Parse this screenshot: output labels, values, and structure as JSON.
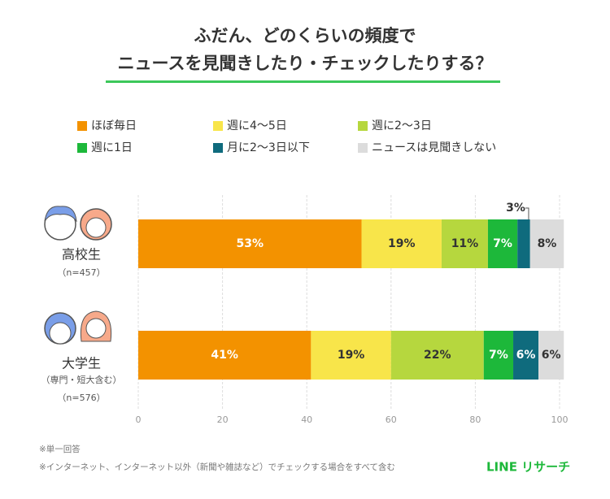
{
  "title_lines": [
    "ふだん、どのくらいの頻度で",
    "ニュースを見聞きしたり・チェックしたりする？"
  ],
  "chart_data": {
    "type": "stacked-bar-horizontal",
    "categories": [
      "高校生",
      "大学生"
    ],
    "category_notes": [
      [
        "（n=457）"
      ],
      [
        "（専門・短大含む）",
        "（n=576）"
      ]
    ],
    "series": [
      {
        "name": "ほぼ毎日",
        "color": "#f39200",
        "values": [
          53,
          41
        ],
        "value_labels": [
          "53%",
          "41%"
        ]
      },
      {
        "name": "週に4～5日",
        "color": "#f8e54a",
        "values": [
          19,
          19
        ],
        "value_labels": [
          "19%",
          "19%"
        ]
      },
      {
        "name": "週に2～3日",
        "color": "#b6d73e",
        "values": [
          11,
          22
        ],
        "value_labels": [
          "11%",
          "22%"
        ]
      },
      {
        "name": "週に1日",
        "color": "#1db83a",
        "values": [
          7,
          7
        ],
        "value_labels": [
          "7%",
          "7%"
        ]
      },
      {
        "name": "月に2～3日以下",
        "color": "#0f6b7d",
        "values": [
          3,
          6
        ],
        "value_labels": [
          "3%",
          "6%"
        ]
      },
      {
        "name": "ニュースは見聞きしない",
        "color": "#dcdcdc",
        "values": [
          8,
          6
        ],
        "value_labels": [
          "8%",
          "6%"
        ]
      }
    ],
    "xlim": [
      0,
      100
    ],
    "xticks": [
      0,
      20,
      40,
      60,
      80,
      100
    ],
    "grid": true
  },
  "footnotes": [
    "※単一回答",
    "※インターネット、インターネット以外（新聞や雑誌など）でチェックする場合をすべて含む"
  ],
  "brand": "LINE リサーチ"
}
